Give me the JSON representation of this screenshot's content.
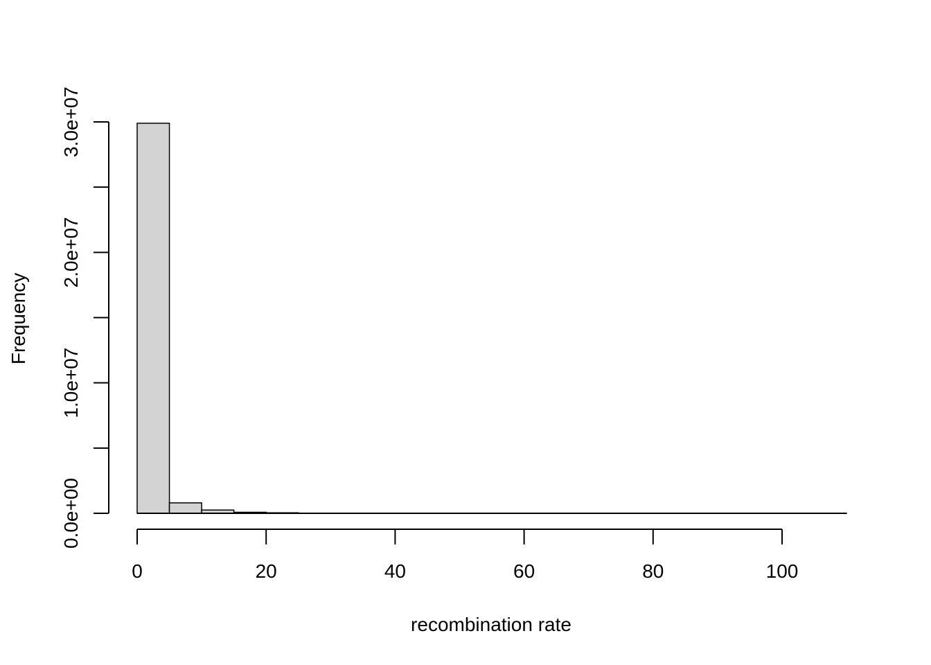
{
  "chart_data": {
    "type": "bar",
    "title": "",
    "xlabel": "recombination rate",
    "ylabel": "Frequency",
    "bin_edges": [
      0,
      5,
      10,
      15,
      20,
      25,
      30,
      35,
      40,
      45,
      50,
      55,
      60,
      65,
      70,
      75,
      80,
      85,
      90,
      95,
      100,
      105,
      110
    ],
    "values": [
      29900000,
      800000,
      250000,
      80000,
      40000,
      10000,
      5000,
      3000,
      2000,
      1000,
      800,
      600,
      500,
      400,
      300,
      200,
      150,
      100,
      80,
      60,
      40,
      20
    ],
    "xlim": [
      0,
      110
    ],
    "ylim": [
      0,
      30000000
    ],
    "x_ticks": [
      0,
      20,
      40,
      60,
      80,
      100
    ],
    "x_tick_labels": [
      "0",
      "20",
      "40",
      "60",
      "80",
      "100"
    ],
    "y_ticks": [
      0,
      5000000,
      10000000,
      15000000,
      20000000,
      25000000,
      30000000
    ],
    "y_tick_labels": [
      "0.0e+00",
      "",
      "1.0e+07",
      "",
      "2.0e+07",
      "",
      "3.0e+07"
    ],
    "grid": false,
    "legend": "none"
  }
}
